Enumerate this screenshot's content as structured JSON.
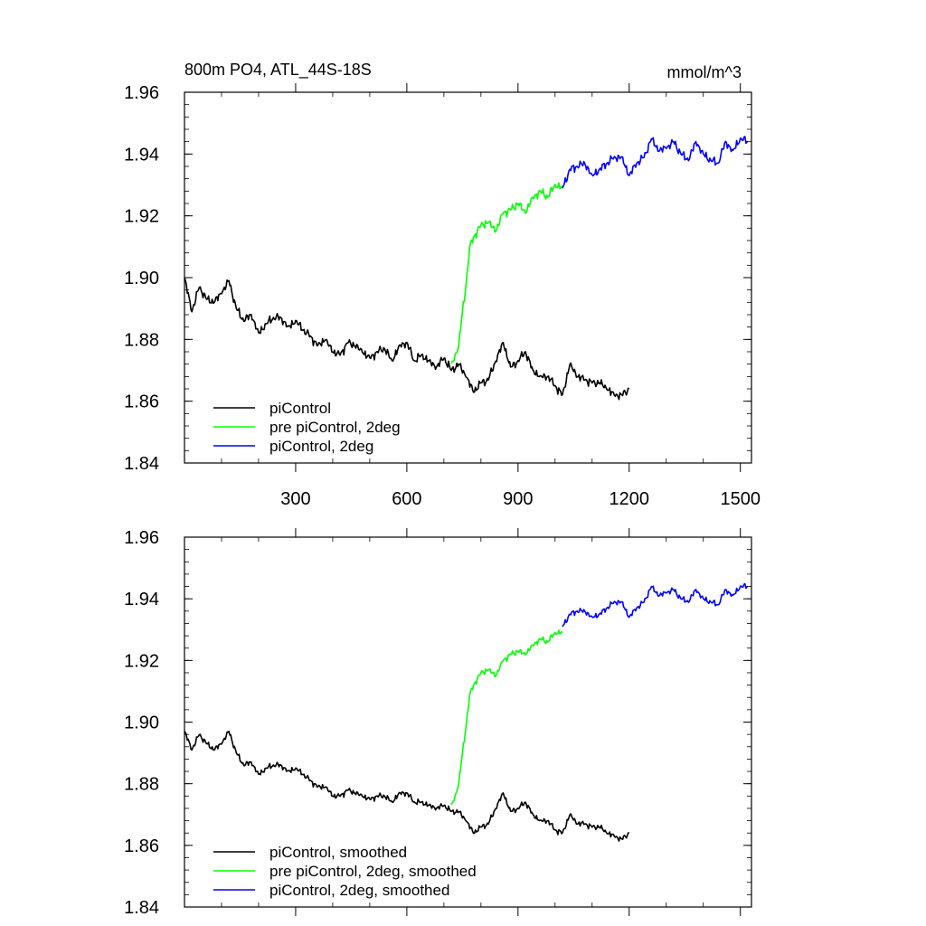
{
  "chart_data": [
    {
      "type": "line",
      "title": "800m PO4, ATL_44S-18S",
      "units": "mmol/m^3",
      "xlim": [
        0,
        1530
      ],
      "ylim": [
        1.84,
        1.96
      ],
      "xticks": [
        300,
        600,
        900,
        1200,
        1500
      ],
      "xtick_labels": [
        "300",
        "600",
        "900",
        "1200",
        "1500"
      ],
      "yticks": [
        1.84,
        1.86,
        1.88,
        1.9,
        1.92,
        1.94,
        1.96
      ],
      "ytick_labels": [
        "1.84",
        "1.86",
        "1.88",
        "1.90",
        "1.92",
        "1.94",
        "1.96"
      ],
      "legend_position": "bottom-left",
      "series": [
        {
          "name": "piControl",
          "color": "#000000",
          "x": [
            0,
            20,
            40,
            60,
            80,
            100,
            120,
            140,
            160,
            180,
            200,
            220,
            240,
            260,
            280,
            300,
            320,
            340,
            360,
            380,
            400,
            420,
            440,
            460,
            480,
            500,
            520,
            540,
            560,
            580,
            600,
            620,
            640,
            660,
            680,
            700,
            720,
            740,
            760,
            780,
            800,
            820,
            840,
            860,
            880,
            900,
            920,
            940,
            960,
            980,
            1000,
            1020,
            1040,
            1060,
            1080,
            1100,
            1120,
            1140,
            1160,
            1180,
            1200
          ],
          "values": [
            1.9,
            1.889,
            1.897,
            1.893,
            1.892,
            1.895,
            1.899,
            1.89,
            1.886,
            1.888,
            1.882,
            1.885,
            1.887,
            1.887,
            1.884,
            1.886,
            1.883,
            1.881,
            1.878,
            1.88,
            1.876,
            1.875,
            1.879,
            1.878,
            1.876,
            1.874,
            1.876,
            1.877,
            1.873,
            1.878,
            1.879,
            1.873,
            1.875,
            1.873,
            1.871,
            1.874,
            1.87,
            1.872,
            1.868,
            1.863,
            1.866,
            1.867,
            1.873,
            1.879,
            1.871,
            1.873,
            1.876,
            1.87,
            1.868,
            1.868,
            1.865,
            1.862,
            1.872,
            1.868,
            1.867,
            1.866,
            1.866,
            1.864,
            1.862,
            1.862,
            1.864
          ]
        },
        {
          "name": "pre piControl, 2deg",
          "color": "#00ff00",
          "x": [
            720,
            730,
            740,
            750,
            760,
            770,
            780,
            800,
            820,
            840,
            860,
            880,
            900,
            920,
            940,
            960,
            980,
            1000,
            1020
          ],
          "values": [
            1.872,
            1.875,
            1.878,
            1.889,
            1.898,
            1.91,
            1.913,
            1.917,
            1.918,
            1.915,
            1.921,
            1.922,
            1.924,
            1.921,
            1.926,
            1.928,
            1.926,
            1.93,
            1.929
          ]
        },
        {
          "name": "piControl, 2deg",
          "color": "#0000ff",
          "x": [
            1020,
            1040,
            1060,
            1080,
            1100,
            1120,
            1140,
            1160,
            1180,
            1200,
            1220,
            1240,
            1260,
            1280,
            1300,
            1320,
            1340,
            1360,
            1380,
            1400,
            1420,
            1440,
            1460,
            1480,
            1500,
            1520
          ],
          "values": [
            1.929,
            1.935,
            1.936,
            1.937,
            1.933,
            1.935,
            1.937,
            1.939,
            1.939,
            1.933,
            1.937,
            1.939,
            1.945,
            1.941,
            1.942,
            1.944,
            1.94,
            1.938,
            1.944,
            1.94,
            1.938,
            1.937,
            1.944,
            1.941,
            1.945,
            1.944
          ]
        }
      ]
    },
    {
      "type": "line",
      "xlim": [
        0,
        1530
      ],
      "ylim": [
        1.84,
        1.96
      ],
      "yticks": [
        1.84,
        1.86,
        1.88,
        1.9,
        1.92,
        1.94,
        1.96
      ],
      "ytick_labels": [
        "1.84",
        "1.86",
        "1.88",
        "1.90",
        "1.92",
        "1.94",
        "1.96"
      ],
      "legend_position": "bottom-left",
      "series": [
        {
          "name": "piControl, smoothed",
          "color": "#000000",
          "x": [
            0,
            20,
            40,
            60,
            80,
            100,
            120,
            140,
            160,
            180,
            200,
            220,
            240,
            260,
            280,
            300,
            320,
            340,
            360,
            380,
            400,
            420,
            440,
            460,
            480,
            500,
            520,
            540,
            560,
            580,
            600,
            620,
            640,
            660,
            680,
            700,
            720,
            740,
            760,
            780,
            800,
            820,
            840,
            860,
            880,
            900,
            920,
            940,
            960,
            980,
            1000,
            1020,
            1040,
            1060,
            1080,
            1100,
            1120,
            1140,
            1160,
            1180,
            1200
          ],
          "values": [
            1.897,
            1.891,
            1.896,
            1.893,
            1.891,
            1.893,
            1.897,
            1.89,
            1.886,
            1.887,
            1.883,
            1.885,
            1.886,
            1.886,
            1.884,
            1.885,
            1.883,
            1.881,
            1.879,
            1.879,
            1.876,
            1.876,
            1.878,
            1.877,
            1.876,
            1.875,
            1.876,
            1.876,
            1.874,
            1.877,
            1.877,
            1.874,
            1.874,
            1.873,
            1.872,
            1.873,
            1.871,
            1.871,
            1.868,
            1.864,
            1.866,
            1.867,
            1.872,
            1.877,
            1.871,
            1.872,
            1.874,
            1.87,
            1.868,
            1.868,
            1.865,
            1.864,
            1.87,
            1.867,
            1.867,
            1.866,
            1.866,
            1.864,
            1.863,
            1.862,
            1.864
          ]
        },
        {
          "name": "pre piControl, 2deg, smoothed",
          "color": "#00ff00",
          "x": [
            720,
            730,
            740,
            750,
            760,
            770,
            780,
            800,
            820,
            840,
            860,
            880,
            900,
            920,
            940,
            960,
            980,
            1000,
            1020
          ],
          "values": [
            1.873,
            1.876,
            1.88,
            1.89,
            1.899,
            1.909,
            1.912,
            1.916,
            1.917,
            1.915,
            1.92,
            1.922,
            1.923,
            1.922,
            1.925,
            1.927,
            1.926,
            1.929,
            1.929
          ]
        },
        {
          "name": "piControl, 2deg, smoothed",
          "color": "#0000ff",
          "x": [
            1020,
            1040,
            1060,
            1080,
            1100,
            1120,
            1140,
            1160,
            1180,
            1200,
            1220,
            1240,
            1260,
            1280,
            1300,
            1320,
            1340,
            1360,
            1380,
            1400,
            1420,
            1440,
            1460,
            1480,
            1500,
            1520
          ],
          "values": [
            1.931,
            1.935,
            1.936,
            1.936,
            1.934,
            1.935,
            1.937,
            1.939,
            1.939,
            1.934,
            1.937,
            1.939,
            1.944,
            1.941,
            1.942,
            1.943,
            1.94,
            1.939,
            1.943,
            1.94,
            1.939,
            1.938,
            1.943,
            1.941,
            1.944,
            1.944
          ]
        }
      ]
    }
  ]
}
